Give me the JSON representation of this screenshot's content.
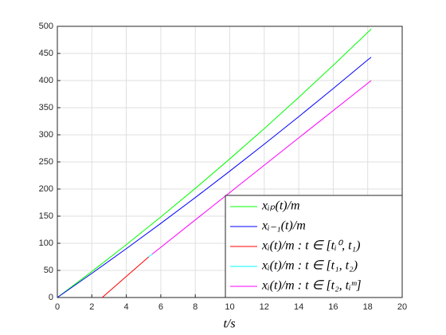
{
  "chart_data": {
    "type": "line",
    "xlabel": "t/s",
    "xlim": [
      0,
      20
    ],
    "xticks": [
      0,
      2,
      4,
      6,
      8,
      10,
      12,
      14,
      16,
      18,
      20
    ],
    "ylim": [
      0,
      500
    ],
    "yticks": [
      0,
      50,
      100,
      150,
      200,
      250,
      300,
      350,
      400,
      450,
      500
    ],
    "grid": true,
    "legend": "lower right",
    "series": [
      {
        "name": "xᵢₚ(t)/m",
        "color": "#00ff00",
        "x": [
          0,
          2,
          4,
          6,
          8,
          10,
          12,
          14,
          16,
          18,
          18.2
        ],
        "values": [
          0,
          47.9,
          97.4,
          148.5,
          201.2,
          255.6,
          311.4,
          369,
          428.1,
          488.8,
          495
        ]
      },
      {
        "name": "xᵢ₋₁(t)/m",
        "color": "#0000ff",
        "x": [
          0,
          2,
          4,
          6,
          8,
          10,
          12,
          14,
          16,
          18,
          18.2
        ],
        "values": [
          0,
          44.5,
          90.1,
          136.7,
          184.3,
          233,
          282.7,
          333.5,
          385.3,
          438.1,
          443
        ]
      },
      {
        "name": "xᵢ(t)/m : t ∈ [tᵢ⁰, t₁)",
        "color": "#ff0000",
        "x": [
          2.6,
          5.3
        ],
        "values": [
          0,
          75
        ]
      },
      {
        "name": "xᵢ(t)/m : t ∈ [t₁, t₂)",
        "color": "#00ffff",
        "x": [
          5.3,
          5.5
        ],
        "values": [
          75,
          80
        ]
      },
      {
        "name": "xᵢ(t)/m : t ∈ [t₂, tᵢᵐ]",
        "color": "#ff00ff",
        "x": [
          5.5,
          12,
          18.2
        ],
        "values": [
          80,
          244,
          400
        ]
      }
    ]
  }
}
